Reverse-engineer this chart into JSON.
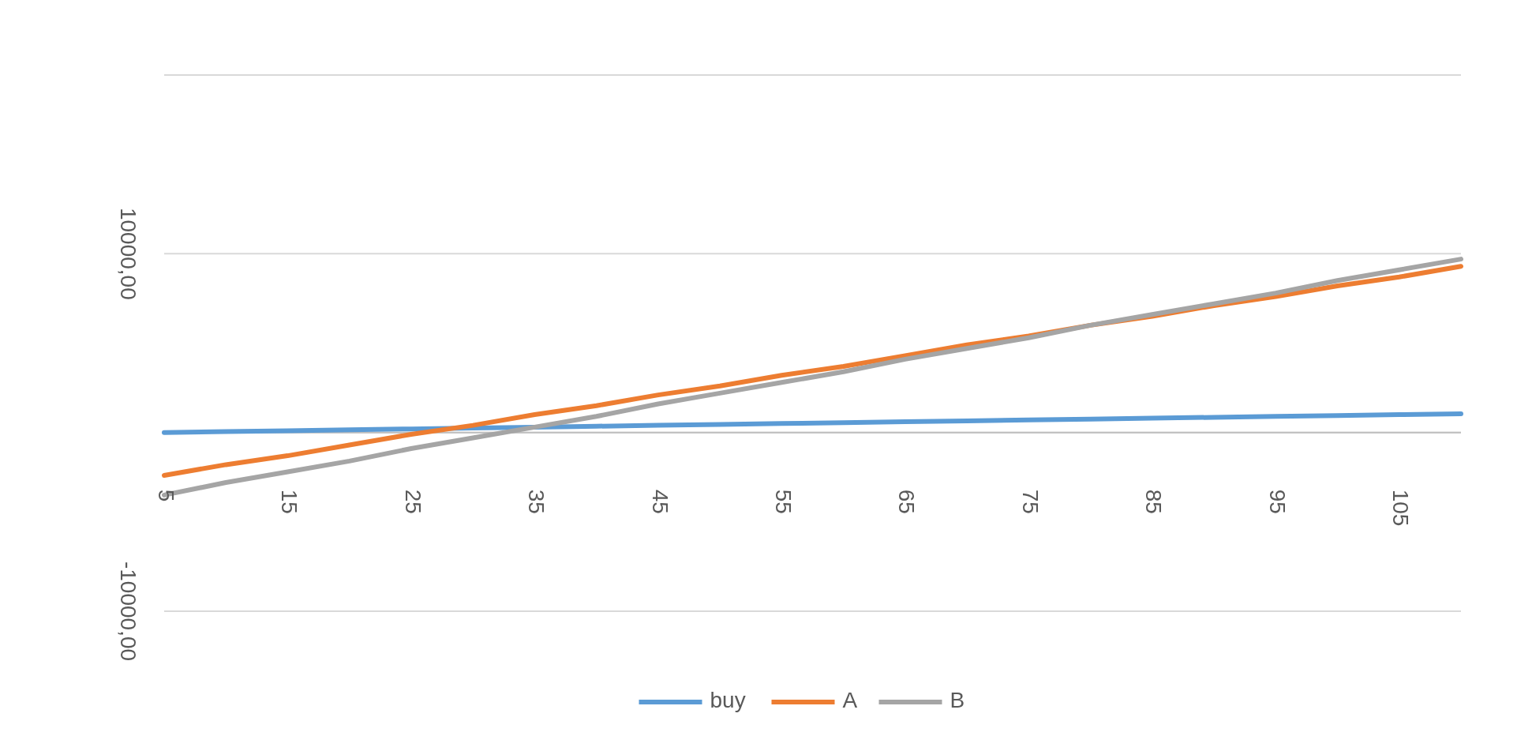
{
  "chart_data": {
    "type": "line",
    "categories": [
      "5",
      null,
      "15",
      null,
      "25",
      null,
      "35",
      null,
      "45",
      null,
      "55",
      null,
      "65",
      null,
      "75",
      null,
      "85",
      null,
      "95",
      null,
      "105",
      null
    ],
    "series": [
      {
        "name": "buy",
        "color": "#5b9bd5",
        "values": [
          0,
          50,
          100,
          150,
          200,
          250,
          300,
          350,
          400,
          450,
          500,
          550,
          600,
          650,
          700,
          750,
          800,
          850,
          900,
          950,
          1000,
          1050
        ]
      },
      {
        "name": "A",
        "color": "#ed7d31",
        "values": [
          -2400,
          -1800,
          -1300,
          -700,
          -100,
          400,
          1000,
          1500,
          2100,
          2600,
          3200,
          3700,
          4300,
          4900,
          5400,
          6000,
          6500,
          7100,
          7600,
          8200,
          8700,
          9300
        ]
      },
      {
        "name": "B",
        "color": "#a5a5a5",
        "values": [
          -3500,
          -2800,
          -2200,
          -1600,
          -900,
          -300,
          300,
          900,
          1600,
          2200,
          2800,
          3400,
          4100,
          4700,
          5300,
          6000,
          6600,
          7200,
          7800,
          8500,
          9100,
          9700
        ]
      }
    ],
    "ylim": [
      -10000,
      20000
    ],
    "yticks": [
      {
        "value": -10000,
        "label": "-10000,00"
      },
      {
        "value": 0,
        "label": null
      },
      {
        "value": 10000,
        "label": "10000,00"
      },
      {
        "value": 20000,
        "label": null
      }
    ],
    "grid": "y",
    "legend": "bottom",
    "marker": "none",
    "line_style": "solid"
  }
}
